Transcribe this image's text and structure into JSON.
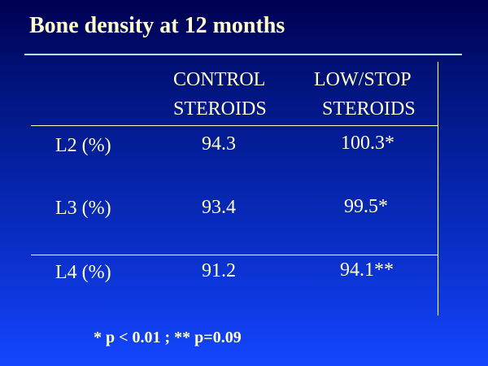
{
  "slide": {
    "title": "Bone density at 12 months",
    "headers": {
      "control_line_1": "CONTROL",
      "control_line_2": "STEROIDS",
      "low_stop_line_1": "LOW/STOP",
      "low_stop_line_2": "STEROIDS"
    },
    "rows": [
      {
        "label": "L2 (%)",
        "control": "94.3",
        "low_stop": "100.3*"
      },
      {
        "label": "L3 (%)",
        "control": "93.4",
        "low_stop": "99.5*"
      },
      {
        "label": "L4 (%)",
        "control": "91.2",
        "low_stop": "94.1**"
      }
    ],
    "footnote": "* p < 0.01 ; ** p=0.09"
  }
}
